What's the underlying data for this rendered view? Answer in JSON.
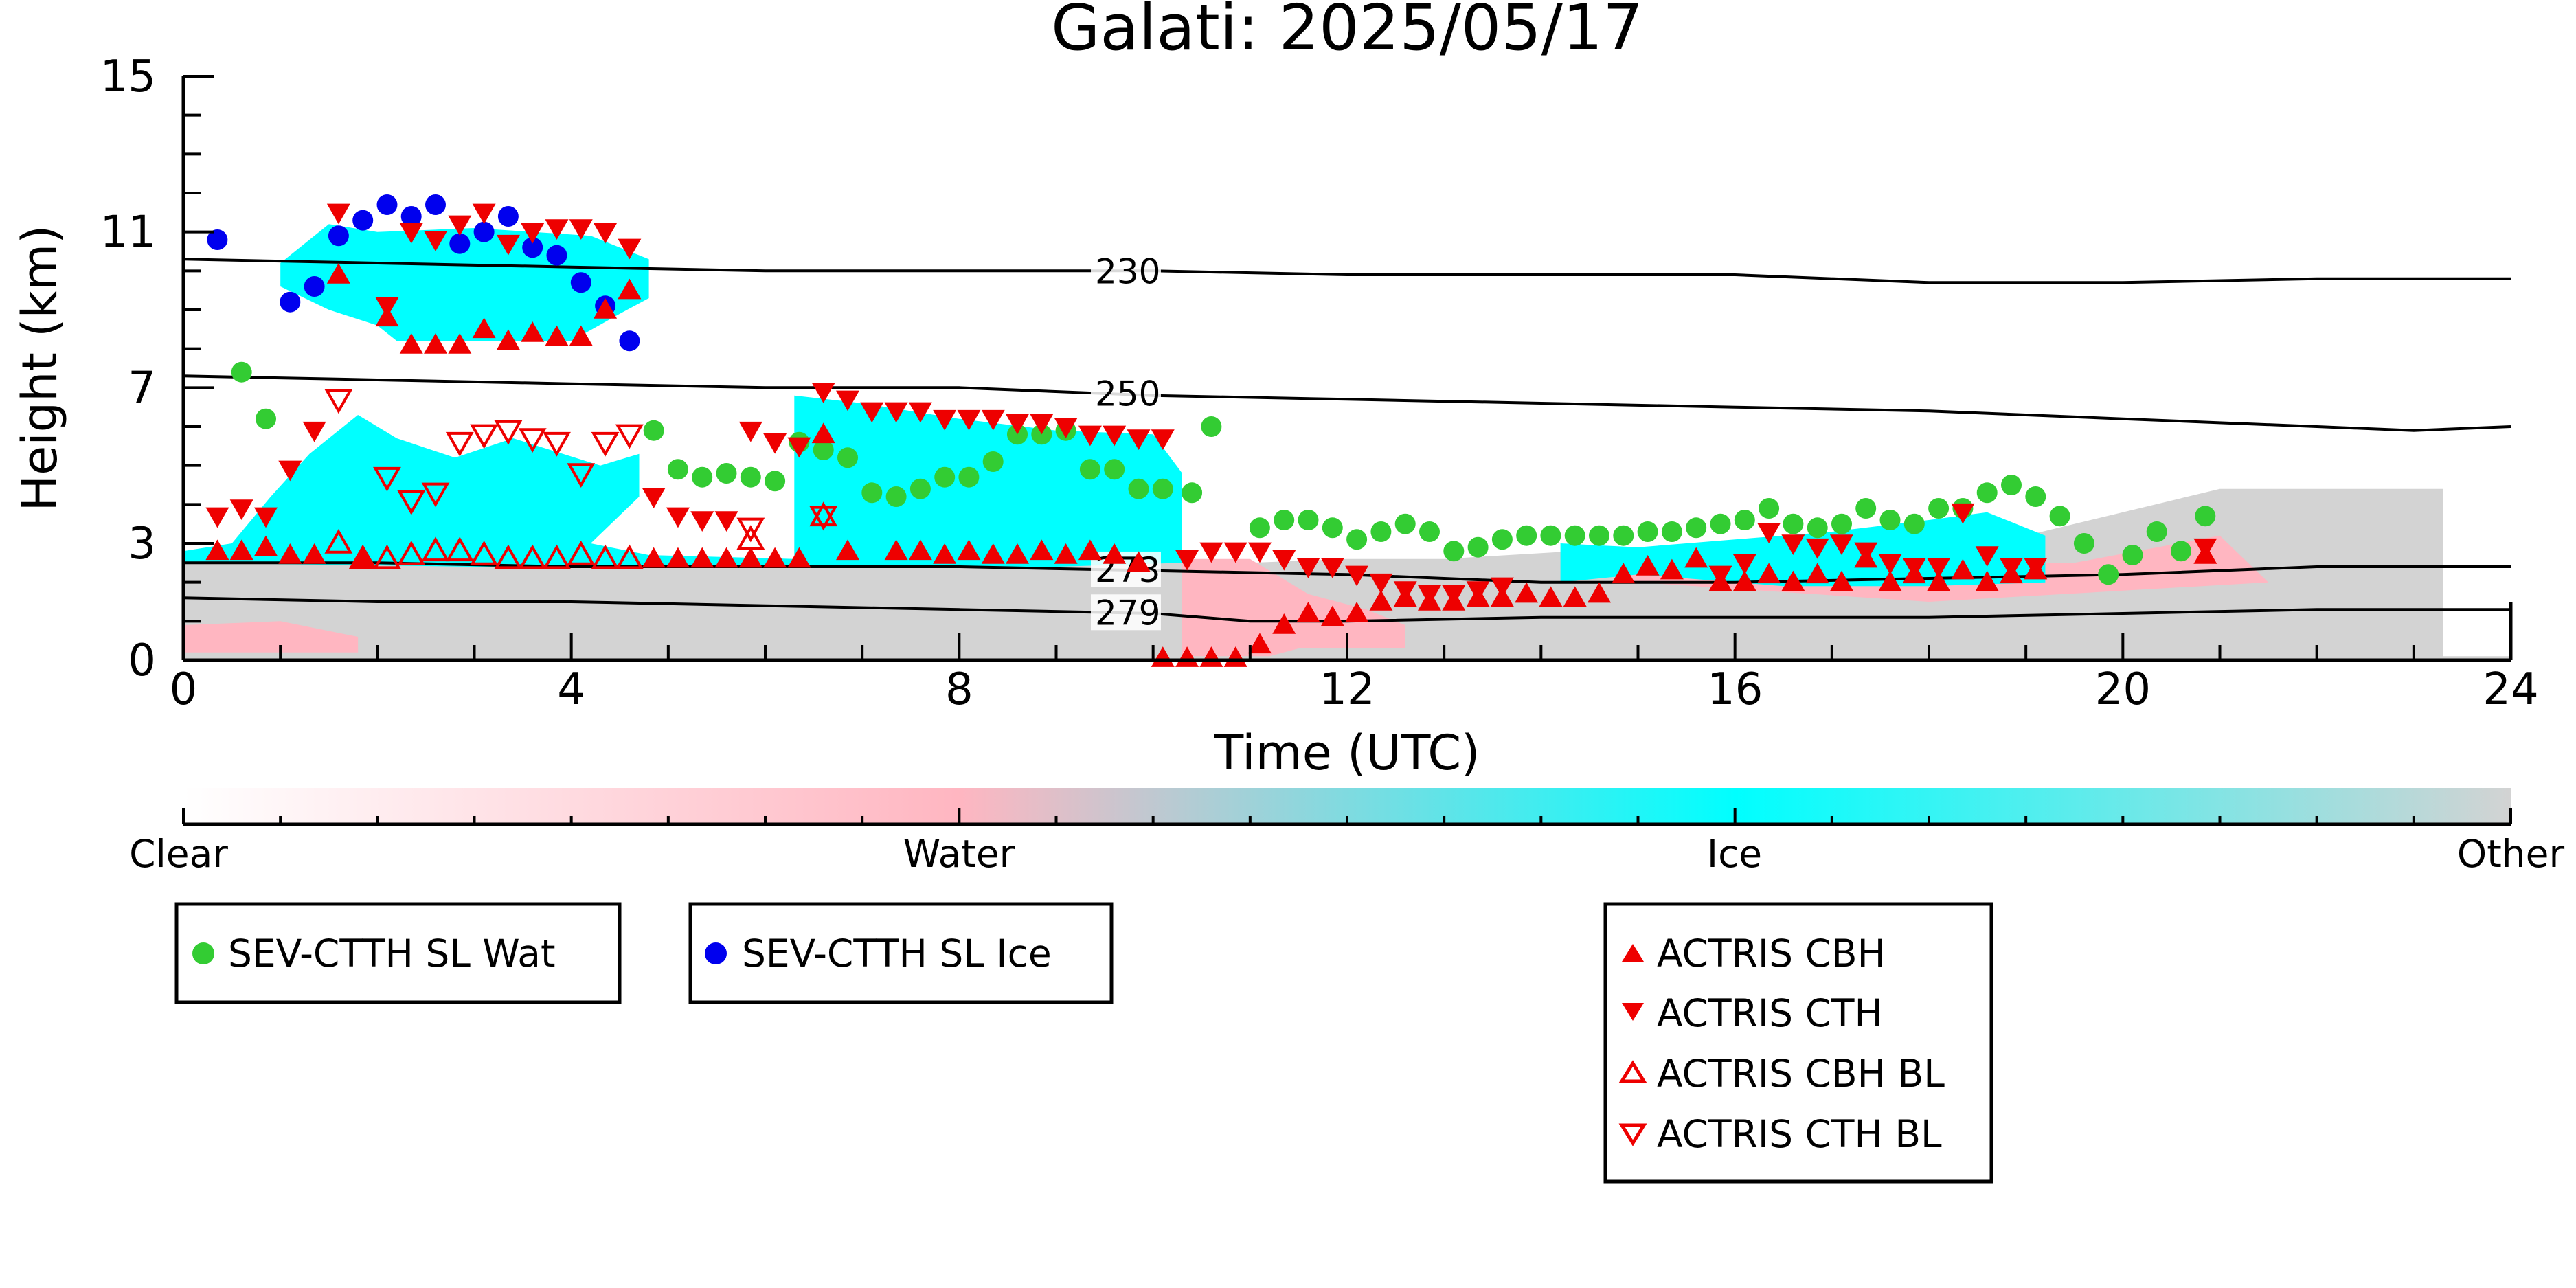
{
  "chart_data": {
    "type": "scatter",
    "title": "Galati: 2025/05/17",
    "xlabel": "Time (UTC)",
    "ylabel": "Height (km)",
    "xlim": [
      0,
      24
    ],
    "ylim": [
      0,
      15
    ],
    "x_ticks": [
      0,
      4,
      8,
      12,
      16,
      20,
      24
    ],
    "x_tick_labels": [
      "0",
      "4",
      "8",
      "12",
      "16",
      "20",
      "24"
    ],
    "y_ticks": [
      0,
      3,
      7,
      11,
      15
    ],
    "y_tick_labels": [
      "0",
      "3",
      "7",
      "11",
      "15"
    ],
    "colors": {
      "water": "#ffb6c1",
      "ice": "#00ffff",
      "other": "#d3d3d3",
      "sev_wat": "#33cc33",
      "sev_ice": "#0000ee",
      "actris": "#ee0000",
      "contour": "#000000"
    },
    "colorbar": {
      "labels": [
        "Clear",
        "Water",
        "Ice",
        "Other"
      ],
      "stops": [
        "#ffffff",
        "#ffb6c1",
        "#00ffff",
        "#d3d3d3"
      ]
    },
    "isotherms": [
      {
        "label": "230",
        "label_x": 9.4,
        "points": [
          [
            0,
            10.3
          ],
          [
            2,
            10.2
          ],
          [
            4,
            10.1
          ],
          [
            6,
            10.0
          ],
          [
            8,
            10.0
          ],
          [
            10,
            10.0
          ],
          [
            12,
            9.9
          ],
          [
            14,
            9.9
          ],
          [
            16,
            9.9
          ],
          [
            18,
            9.7
          ],
          [
            20,
            9.7
          ],
          [
            22,
            9.8
          ],
          [
            24,
            9.8
          ]
        ]
      },
      {
        "label": "250",
        "label_x": 9.4,
        "points": [
          [
            0,
            7.3
          ],
          [
            2,
            7.2
          ],
          [
            4,
            7.1
          ],
          [
            6,
            7.0
          ],
          [
            8,
            7.0
          ],
          [
            10,
            6.8
          ],
          [
            12,
            6.7
          ],
          [
            14,
            6.6
          ],
          [
            16,
            6.5
          ],
          [
            18,
            6.4
          ],
          [
            20,
            6.2
          ],
          [
            22,
            6.0
          ],
          [
            23,
            5.9
          ],
          [
            24,
            6.0
          ]
        ]
      },
      {
        "label": "273",
        "label_x": 9.4,
        "points": [
          [
            0,
            2.5
          ],
          [
            2,
            2.5
          ],
          [
            4,
            2.4
          ],
          [
            6,
            2.4
          ],
          [
            8,
            2.4
          ],
          [
            10,
            2.3
          ],
          [
            12,
            2.2
          ],
          [
            14,
            2.0
          ],
          [
            16,
            2.0
          ],
          [
            18,
            2.1
          ],
          [
            20,
            2.2
          ],
          [
            22,
            2.4
          ],
          [
            24,
            2.4
          ]
        ]
      },
      {
        "label": "279",
        "label_x": 9.4,
        "points": [
          [
            0,
            1.6
          ],
          [
            2,
            1.5
          ],
          [
            4,
            1.5
          ],
          [
            6,
            1.4
          ],
          [
            8,
            1.3
          ],
          [
            10,
            1.2
          ],
          [
            11,
            1.0
          ],
          [
            12,
            1.0
          ],
          [
            14,
            1.1
          ],
          [
            16,
            1.1
          ],
          [
            18,
            1.1
          ],
          [
            20,
            1.2
          ],
          [
            22,
            1.3
          ],
          [
            24,
            1.3
          ]
        ]
      }
    ],
    "cloud_regions": [
      {
        "phase": "other",
        "polygon": [
          [
            0,
            0
          ],
          [
            24,
            0
          ],
          [
            24,
            0.1
          ],
          [
            23.3,
            0.1
          ],
          [
            23.3,
            4.4
          ],
          [
            21,
            4.4
          ],
          [
            20,
            3.8
          ],
          [
            19,
            3.2
          ],
          [
            17,
            3.0
          ],
          [
            15,
            2.9
          ],
          [
            13,
            2.6
          ],
          [
            12,
            2.6
          ],
          [
            11,
            2.5
          ],
          [
            10.2,
            2.5
          ],
          [
            10,
            2.5
          ],
          [
            8,
            2.4
          ],
          [
            6,
            2.4
          ],
          [
            4,
            2.5
          ],
          [
            2,
            2.5
          ],
          [
            0,
            2.5
          ]
        ]
      },
      {
        "phase": "water",
        "polygon": [
          [
            10.3,
            0.1
          ],
          [
            10.3,
            2.6
          ],
          [
            11,
            2.6
          ],
          [
            11.2,
            2.3
          ],
          [
            11.6,
            1.7
          ],
          [
            12.2,
            1.3
          ],
          [
            12.6,
            0.9
          ],
          [
            12.6,
            0.3
          ],
          [
            11.5,
            0.3
          ],
          [
            11.2,
            0.1
          ]
        ]
      },
      {
        "phase": "water",
        "polygon": [
          [
            0,
            0.2
          ],
          [
            0,
            0.9
          ],
          [
            1,
            1.0
          ],
          [
            1.8,
            0.6
          ],
          [
            1.8,
            0.2
          ]
        ]
      },
      {
        "phase": "water",
        "polygon": [
          [
            14.5,
            2.5
          ],
          [
            19.5,
            2.5
          ],
          [
            21,
            3.2
          ],
          [
            21.5,
            2.0
          ],
          [
            18,
            1.5
          ],
          [
            15,
            2.0
          ]
        ]
      },
      {
        "phase": "ice",
        "polygon": [
          [
            1.0,
            10.2
          ],
          [
            1.0,
            9.6
          ],
          [
            1.5,
            9.0
          ],
          [
            2.0,
            8.6
          ],
          [
            2.2,
            8.2
          ],
          [
            4.0,
            8.2
          ],
          [
            4.5,
            8.9
          ],
          [
            4.8,
            9.3
          ],
          [
            4.8,
            10.3
          ],
          [
            4.2,
            10.9
          ],
          [
            3.0,
            11.1
          ],
          [
            2.0,
            11.0
          ],
          [
            1.5,
            11.2
          ]
        ]
      },
      {
        "phase": "ice",
        "polygon": [
          [
            0,
            2.8
          ],
          [
            0.5,
            3.0
          ],
          [
            0.9,
            4.2
          ],
          [
            1.3,
            5.3
          ],
          [
            1.8,
            6.3
          ],
          [
            2.2,
            5.7
          ],
          [
            2.8,
            5.2
          ],
          [
            3.4,
            5.7
          ],
          [
            4.3,
            5.0
          ],
          [
            4.7,
            5.3
          ],
          [
            4.7,
            4.2
          ],
          [
            4.2,
            3.0
          ],
          [
            4.8,
            2.7
          ],
          [
            6.3,
            2.6
          ],
          [
            6.3,
            3.4
          ],
          [
            6.3,
            6.8
          ],
          [
            7.0,
            6.6
          ],
          [
            8.0,
            6.2
          ],
          [
            9.0,
            5.9
          ],
          [
            10.0,
            5.8
          ],
          [
            10.3,
            4.8
          ],
          [
            10.3,
            2.5
          ],
          [
            9.0,
            2.4
          ],
          [
            6.0,
            2.4
          ],
          [
            3.0,
            2.4
          ],
          [
            0,
            2.5
          ]
        ]
      },
      {
        "phase": "ice",
        "polygon": [
          [
            14.2,
            2.0
          ],
          [
            14.2,
            3.0
          ],
          [
            15.0,
            2.9
          ],
          [
            16.0,
            3.1
          ],
          [
            17.0,
            3.3
          ],
          [
            18.0,
            3.6
          ],
          [
            18.6,
            3.8
          ],
          [
            19.2,
            3.2
          ],
          [
            19.2,
            2.0
          ],
          [
            18.0,
            1.9
          ],
          [
            16.5,
            1.9
          ],
          [
            15.0,
            2.2
          ]
        ]
      }
    ],
    "series": [
      {
        "name": "SEV-CTTH SL Wat",
        "marker": "circle",
        "color": "#33cc33",
        "x": [
          0.6,
          0.85,
          4.85,
          5.1,
          5.35,
          5.6,
          5.85,
          6.1,
          6.35,
          6.6,
          6.85,
          7.1,
          7.35,
          7.6,
          7.85,
          8.1,
          8.35,
          8.6,
          8.85,
          9.1,
          9.35,
          9.6,
          9.85,
          10.1,
          10.4,
          10.6,
          11.1,
          11.35,
          11.6,
          11.85,
          12.1,
          12.35,
          12.6,
          12.85,
          13.1,
          13.35,
          13.6,
          13.85,
          14.1,
          14.35,
          14.6,
          14.85,
          15.1,
          15.35,
          15.6,
          15.85,
          16.1,
          16.35,
          16.6,
          16.85,
          17.1,
          17.35,
          17.6,
          17.85,
          18.1,
          18.35,
          18.6,
          18.85,
          19.1,
          19.35,
          19.6,
          19.85,
          20.1,
          20.35,
          20.6,
          20.85
        ],
        "y": [
          7.4,
          6.2,
          5.9,
          4.9,
          4.7,
          4.8,
          4.7,
          4.6,
          5.6,
          5.4,
          5.2,
          4.3,
          4.2,
          4.4,
          4.7,
          4.7,
          5.1,
          5.8,
          5.8,
          5.9,
          4.9,
          4.9,
          4.4,
          4.4,
          4.3,
          6.0,
          3.4,
          3.6,
          3.6,
          3.4,
          3.1,
          3.3,
          3.5,
          3.3,
          2.8,
          2.9,
          3.1,
          3.2,
          3.2,
          3.2,
          3.2,
          3.2,
          3.3,
          3.3,
          3.4,
          3.5,
          3.6,
          3.9,
          3.5,
          3.4,
          3.5,
          3.9,
          3.6,
          3.5,
          3.9,
          3.9,
          4.3,
          4.5,
          4.2,
          3.7,
          3.0,
          2.2,
          2.7,
          3.3,
          2.8,
          3.7
        ]
      },
      {
        "name": "SEV-CTTH SL Ice",
        "marker": "circle",
        "color": "#0000ee",
        "x": [
          0.35,
          1.1,
          1.35,
          1.6,
          1.85,
          2.1,
          2.35,
          2.6,
          2.85,
          3.1,
          3.35,
          3.6,
          3.85,
          4.1,
          4.35,
          4.6
        ],
        "y": [
          10.8,
          9.2,
          9.6,
          10.9,
          11.3,
          11.7,
          11.4,
          11.7,
          10.7,
          11.0,
          11.4,
          10.6,
          10.4,
          9.7,
          9.1,
          8.2
        ]
      },
      {
        "name": "ACTRIS CBH",
        "marker": "triangle-up",
        "color": "#ee0000",
        "x": [
          0.35,
          0.6,
          0.85,
          1.1,
          1.35,
          1.6,
          1.85,
          2.1,
          2.35,
          2.6,
          2.85,
          3.1,
          3.35,
          3.6,
          3.85,
          4.1,
          4.35,
          4.6,
          4.85,
          5.1,
          5.35,
          5.6,
          5.85,
          6.1,
          6.35,
          6.6,
          6.85,
          7.35,
          7.6,
          7.85,
          8.1,
          8.35,
          8.6,
          8.85,
          9.1,
          9.35,
          9.6,
          9.85,
          10.1,
          10.35,
          10.6,
          10.85,
          11.1,
          11.35,
          11.6,
          11.85,
          12.1,
          12.35,
          12.6,
          12.85,
          13.1,
          13.35,
          13.6,
          13.85,
          14.1,
          14.35,
          14.6,
          14.85,
          15.1,
          15.35,
          15.6,
          15.85,
          16.1,
          16.35,
          16.6,
          16.85,
          17.1,
          17.35,
          17.6,
          17.85,
          18.1,
          18.35,
          18.6,
          18.85,
          19.1,
          20.85
        ],
        "y": [
          2.8,
          2.8,
          2.9,
          2.7,
          2.7,
          9.9,
          2.6,
          8.8,
          8.1,
          8.1,
          8.1,
          8.5,
          8.2,
          8.4,
          8.3,
          8.3,
          9.0,
          9.5,
          2.6,
          2.6,
          2.6,
          2.6,
          2.6,
          2.6,
          2.6,
          5.8,
          2.8,
          2.8,
          2.8,
          2.7,
          2.8,
          2.7,
          2.7,
          2.8,
          2.7,
          2.8,
          2.7,
          2.5,
          0.05,
          0.05,
          0.05,
          0.05,
          0.4,
          0.9,
          1.2,
          1.1,
          1.2,
          1.5,
          1.6,
          1.5,
          1.5,
          1.6,
          1.6,
          1.7,
          1.6,
          1.6,
          1.7,
          2.2,
          2.4,
          2.3,
          2.6,
          2.0,
          2.0,
          2.2,
          2.0,
          2.2,
          2.0,
          2.6,
          2.0,
          2.2,
          2.0,
          2.3,
          2.0,
          2.2,
          2.3,
          2.7
        ]
      },
      {
        "name": "ACTRIS CTH",
        "marker": "triangle-down",
        "color": "#ee0000",
        "x": [
          0.35,
          0.6,
          0.85,
          1.1,
          1.35,
          1.6,
          2.1,
          2.35,
          2.6,
          2.85,
          3.1,
          3.35,
          3.6,
          3.85,
          4.1,
          4.35,
          4.6,
          4.85,
          5.1,
          5.35,
          5.6,
          5.85,
          6.1,
          6.35,
          6.6,
          6.85,
          7.1,
          7.35,
          7.6,
          7.85,
          8.1,
          8.35,
          8.6,
          8.85,
          9.1,
          9.35,
          9.6,
          9.85,
          10.1,
          10.35,
          10.6,
          10.85,
          11.1,
          11.35,
          11.6,
          11.85,
          12.1,
          12.35,
          12.6,
          12.85,
          13.1,
          13.35,
          13.6,
          15.85,
          16.1,
          16.35,
          16.6,
          16.85,
          17.1,
          17.35,
          17.6,
          17.85,
          18.1,
          18.35,
          18.6,
          18.85,
          19.1,
          20.85
        ],
        "y": [
          3.7,
          3.9,
          3.7,
          4.9,
          5.9,
          11.5,
          9.1,
          11.0,
          10.8,
          11.2,
          11.5,
          10.7,
          11.0,
          11.1,
          11.1,
          11.0,
          10.6,
          4.2,
          3.7,
          3.6,
          3.6,
          5.9,
          5.6,
          5.5,
          6.9,
          6.7,
          6.4,
          6.4,
          6.4,
          6.2,
          6.2,
          6.2,
          6.1,
          6.1,
          6.0,
          5.8,
          5.8,
          5.7,
          5.7,
          2.6,
          2.8,
          2.8,
          2.8,
          2.6,
          2.4,
          2.4,
          2.2,
          2.0,
          1.8,
          1.7,
          1.7,
          1.8,
          1.9,
          2.2,
          2.5,
          3.3,
          3.0,
          2.9,
          3.0,
          2.8,
          2.5,
          2.4,
          2.4,
          3.8,
          2.7,
          2.4,
          2.4,
          2.9
        ]
      },
      {
        "name": "ACTRIS CBH BL",
        "marker": "triangle-up-open",
        "color": "#ee0000",
        "x": [
          1.6,
          1.85,
          2.1,
          2.35,
          2.6,
          2.85,
          3.1,
          3.35,
          3.6,
          3.85,
          4.1,
          4.35,
          4.6,
          5.85,
          6.6
        ],
        "y": [
          3.0,
          2.6,
          2.6,
          2.7,
          2.8,
          2.8,
          2.7,
          2.6,
          2.6,
          2.6,
          2.7,
          2.6,
          2.6,
          3.1,
          3.7
        ]
      },
      {
        "name": "ACTRIS CTH BL",
        "marker": "triangle-down-open",
        "color": "#ee0000",
        "x": [
          1.6,
          2.1,
          2.35,
          2.6,
          2.85,
          3.1,
          3.35,
          3.6,
          3.85,
          4.1,
          4.35,
          4.6,
          5.85,
          6.6
        ],
        "y": [
          6.7,
          4.7,
          4.1,
          4.3,
          5.6,
          5.8,
          5.9,
          5.7,
          5.6,
          4.8,
          5.6,
          5.8,
          3.4,
          3.7
        ]
      }
    ],
    "legends": [
      {
        "entries": [
          "SEV-CTTH SL Wat"
        ]
      },
      {
        "entries": [
          "SEV-CTTH SL Ice"
        ]
      },
      {
        "entries": [
          "ACTRIS CBH",
          "ACTRIS CTH",
          "ACTRIS CBH BL",
          "ACTRIS CTH BL"
        ]
      }
    ]
  }
}
